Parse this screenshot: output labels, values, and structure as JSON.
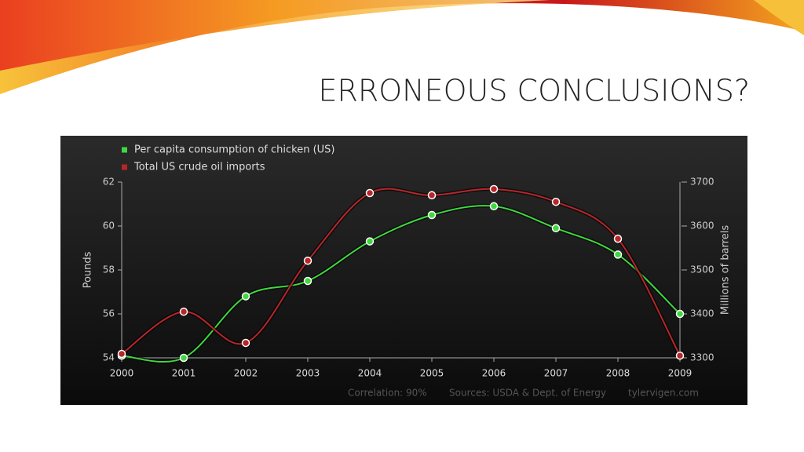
{
  "slide": {
    "title": "ERRONEOUS CONCLUSIONS?"
  },
  "chart_data": {
    "type": "line",
    "x": [
      2000,
      2001,
      2002,
      2003,
      2004,
      2005,
      2006,
      2007,
      2008,
      2009
    ],
    "xlim": [
      2000,
      2009
    ],
    "xticks": [
      2000,
      2001,
      2002,
      2003,
      2004,
      2005,
      2006,
      2007,
      2008,
      2009
    ],
    "ylim": [
      54,
      62
    ],
    "yticks": [
      54,
      56,
      58,
      60,
      62
    ],
    "y_label": "Pounds",
    "y2lim": [
      3300,
      3700
    ],
    "y2ticks": [
      3300,
      3400,
      3500,
      3600,
      3700
    ],
    "y2_label": "Millions of barrels",
    "legend": "top-left",
    "smooth": true,
    "series": [
      {
        "name": "Per capita consumption of chicken (US)",
        "color": "#3fd83f",
        "axis": "y",
        "values": [
          54.1,
          54.0,
          56.8,
          57.5,
          59.3,
          60.5,
          60.9,
          59.9,
          58.7,
          56.0
        ]
      },
      {
        "name": "Total US crude oil imports",
        "color": "#b8262a",
        "axis": "y2",
        "values": [
          3309,
          3405,
          3334,
          3521,
          3675,
          3670,
          3684,
          3655,
          3571,
          3305
        ]
      }
    ],
    "notes": [
      "Correlation: 90%",
      "Sources: USDA & Dept. of Energy",
      "tylervigen.com"
    ]
  }
}
